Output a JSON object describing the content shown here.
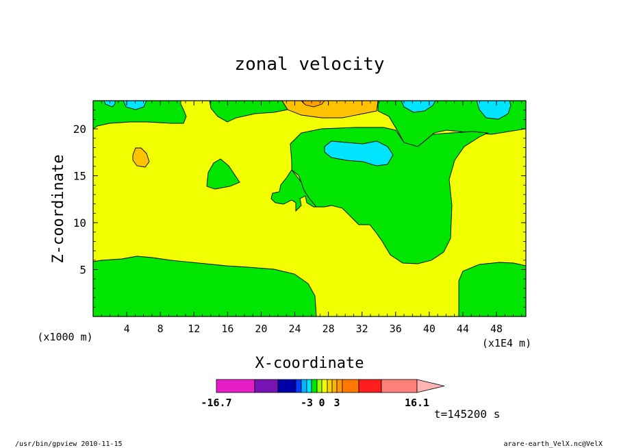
{
  "chart_data": {
    "type": "heatmap",
    "title": "zonal velocity",
    "xlabel": "X-coordinate",
    "ylabel": "Z-coordinate",
    "x_unit_left": "(x1000 m)",
    "x_unit_right": "(x1E4 m)",
    "xlim": [
      0,
      51.5
    ],
    "ylim": [
      0,
      23
    ],
    "xticks": [
      "4",
      "8",
      "12",
      "16",
      "20",
      "24",
      "28",
      "32",
      "36",
      "40",
      "44",
      "48"
    ],
    "xtick_values": [
      4,
      8,
      12,
      16,
      20,
      24,
      28,
      32,
      36,
      40,
      44,
      48
    ],
    "yticks": [
      "5",
      "10",
      "15",
      "20"
    ],
    "ytick_values": [
      5,
      10,
      15,
      20
    ],
    "field_levels": [
      {
        "range": "-3..-2",
        "color": "#00e5ff"
      },
      {
        "range": "-2..0",
        "color": "#00e600"
      },
      {
        "range": "0..1",
        "color": "#f2ff00"
      },
      {
        "range": "1..2",
        "color": "#ffc200"
      },
      {
        "range": "2..3",
        "color": "#ffa000"
      }
    ],
    "colorbar": {
      "colors": [
        "#e61ec8",
        "#7814b4",
        "#0000a8",
        "#0a3cff",
        "#00b4ff",
        "#00e5ff",
        "#00e600",
        "#a0ff00",
        "#f2ff00",
        "#ffd200",
        "#ffb400",
        "#ff9600",
        "#ff7800",
        "#ff1e1e",
        "#ff8078"
      ],
      "boundaries": [
        -16.7,
        -12.3,
        -8.8,
        -6.0,
        -4.2,
        -3.0,
        -2.0,
        -1.0,
        0.0,
        1.0,
        2.0,
        3.0,
        4.4,
        7.4,
        10.2,
        16.1
      ],
      "tick_labels": [
        "-16.7",
        "-3",
        "0",
        "3",
        "16.1"
      ],
      "tick_values": [
        -16.7,
        -3,
        0,
        3,
        16.1
      ],
      "extend": "max"
    },
    "annotation": "t=145200 s"
  },
  "footer": {
    "left": "/usr/bin/gpview   2010-11-15",
    "right": "arare-earth_VelX.nc@VelX"
  }
}
